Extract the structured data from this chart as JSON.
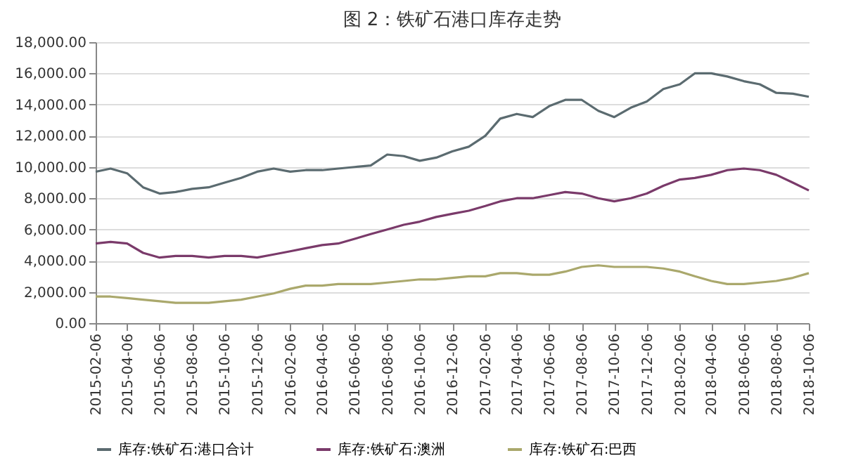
{
  "chart_data": {
    "type": "line",
    "title": "图 2：铁矿石港口库存走势",
    "x": [
      "2015-02-06",
      "2015-03-06",
      "2015-04-06",
      "2015-05-06",
      "2015-06-06",
      "2015-07-06",
      "2015-08-06",
      "2015-09-06",
      "2015-10-06",
      "2015-11-06",
      "2015-12-06",
      "2016-01-06",
      "2016-02-06",
      "2016-03-06",
      "2016-04-06",
      "2016-05-06",
      "2016-06-06",
      "2016-07-06",
      "2016-08-06",
      "2016-09-06",
      "2016-10-06",
      "2016-11-06",
      "2016-12-06",
      "2017-01-06",
      "2017-02-06",
      "2017-03-06",
      "2017-04-06",
      "2017-05-06",
      "2017-06-06",
      "2017-07-06",
      "2017-08-06",
      "2017-09-06",
      "2017-10-06",
      "2017-11-06",
      "2017-12-06",
      "2018-01-06",
      "2018-02-06",
      "2018-03-06",
      "2018-04-06",
      "2018-05-06",
      "2018-06-06",
      "2018-07-06",
      "2018-08-06",
      "2018-09-06",
      "2018-10-06"
    ],
    "series": [
      {
        "name": "库存:铁矿石:港口合计",
        "color": "#5b6b70",
        "values": [
          9700,
          9900,
          9600,
          8700,
          8300,
          8400,
          8600,
          8700,
          9000,
          9300,
          9700,
          9900,
          9700,
          9800,
          9800,
          9900,
          10000,
          10100,
          10800,
          10700,
          10400,
          10600,
          11000,
          11300,
          12000,
          13100,
          13400,
          13200,
          13900,
          14300,
          14300,
          13600,
          13200,
          13800,
          14200,
          15000,
          15300,
          16000,
          16000,
          15800,
          15500,
          15300,
          14750,
          14700,
          14500
        ]
      },
      {
        "name": "库存:铁矿石:澳洲",
        "color": "#7a3a6a",
        "values": [
          5100,
          5200,
          5100,
          4500,
          4200,
          4300,
          4300,
          4200,
          4300,
          4300,
          4200,
          4400,
          4600,
          4800,
          5000,
          5100,
          5400,
          5700,
          6000,
          6300,
          6500,
          6800,
          7000,
          7200,
          7500,
          7800,
          8000,
          8000,
          8200,
          8400,
          8300,
          8000,
          7800,
          8000,
          8300,
          8800,
          9200,
          9300,
          9500,
          9800,
          9900,
          9800,
          9500,
          9000,
          8500
        ]
      },
      {
        "name": "库存:铁矿石:巴西",
        "color": "#aaa86c",
        "values": [
          1700,
          1700,
          1600,
          1500,
          1400,
          1300,
          1300,
          1300,
          1400,
          1500,
          1700,
          1900,
          2200,
          2400,
          2400,
          2500,
          2500,
          2500,
          2600,
          2700,
          2800,
          2800,
          2900,
          3000,
          3000,
          3200,
          3200,
          3100,
          3100,
          3300,
          3600,
          3700,
          3600,
          3600,
          3600,
          3500,
          3300,
          3000,
          2700,
          2500,
          2500,
          2600,
          2700,
          2900,
          3200
        ]
      }
    ],
    "xlim": [
      "2015-02-06",
      "2018-10-06"
    ],
    "xticks": [
      "2015-02-06",
      "2015-04-06",
      "2015-06-06",
      "2015-08-06",
      "2015-10-06",
      "2015-12-06",
      "2016-02-06",
      "2016-04-06",
      "2016-06-06",
      "2016-08-06",
      "2016-10-06",
      "2016-12-06",
      "2017-02-06",
      "2017-04-06",
      "2017-06-06",
      "2017-08-06",
      "2017-10-06",
      "2017-12-06",
      "2018-02-06",
      "2018-04-06",
      "2018-06-06",
      "2018-08-06",
      "2018-10-06"
    ],
    "ylim": [
      0,
      18000
    ],
    "yticks": [
      {
        "value": 0,
        "label": "0.00"
      },
      {
        "value": 2000,
        "label": "2,000.00"
      },
      {
        "value": 4000,
        "label": "4,000.00"
      },
      {
        "value": 6000,
        "label": "6,000.00"
      },
      {
        "value": 8000,
        "label": "8,000.00"
      },
      {
        "value": 10000,
        "label": "10,000.00"
      },
      {
        "value": 12000,
        "label": "12,000.00"
      },
      {
        "value": 14000,
        "label": "14,000.00"
      },
      {
        "value": 16000,
        "label": "16,000.00"
      },
      {
        "value": 18000,
        "label": "18,000.00"
      }
    ],
    "grid": "y",
    "legend": "bottom",
    "marker": "none",
    "line_style": "solid"
  }
}
